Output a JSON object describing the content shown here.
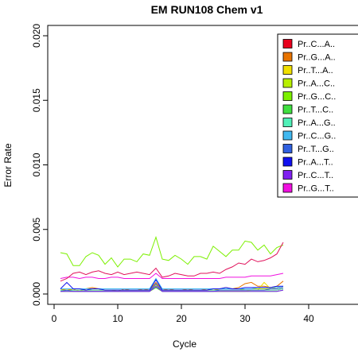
{
  "chart_data": {
    "type": "line",
    "title": "EM RUN108 Chem v1",
    "xlabel": "Cycle",
    "ylabel": "Error Rate",
    "xlim": [
      -1,
      49
    ],
    "ylim": [
      -0.0008,
      0.0208
    ],
    "xticks": [
      0,
      10,
      20,
      30,
      40
    ],
    "yticks": [
      0.0,
      0.005,
      0.01,
      0.015,
      0.02
    ],
    "ytick_labels": [
      "0.000",
      "0.005",
      "0.010",
      "0.015",
      "0.020"
    ],
    "xtick_labels": [
      "0",
      "10",
      "20",
      "30",
      "40"
    ],
    "legend_position": "top-right",
    "x": [
      1,
      2,
      3,
      4,
      5,
      6,
      7,
      8,
      9,
      10,
      11,
      12,
      13,
      14,
      15,
      16,
      17,
      18,
      19,
      20,
      21,
      22,
      23,
      24,
      25,
      26,
      27,
      28,
      29,
      30,
      31,
      32,
      33,
      34,
      35,
      36
    ],
    "series": [
      {
        "name": "Pr..C...A..",
        "color": "#e8001c",
        "values": [
          0.0003,
          0.0003,
          0.0003,
          0.0003,
          0.0003,
          0.0003,
          0.0003,
          0.0003,
          0.0003,
          0.0003,
          0.0003,
          0.0003,
          0.0003,
          0.0003,
          0.0003,
          0.0006,
          0.0003,
          0.0003,
          0.0003,
          0.0003,
          0.0003,
          0.0003,
          0.0003,
          0.0003,
          0.0003,
          0.0003,
          0.0003,
          0.0003,
          0.0003,
          0.0003,
          0.0003,
          0.0003,
          0.0003,
          0.0003,
          0.0003,
          0.0004
        ]
      },
      {
        "name": "Pr..G...A..",
        "color": "#e87400",
        "values": [
          0.0004,
          0.0003,
          0.0004,
          0.0002,
          0.0004,
          0.0005,
          0.0004,
          0.0003,
          0.0003,
          0.0002,
          0.0004,
          0.0003,
          0.0003,
          0.0004,
          0.0003,
          0.0009,
          0.0003,
          0.0004,
          0.0003,
          0.0003,
          0.0004,
          0.0003,
          0.0003,
          0.0004,
          0.0003,
          0.0004,
          0.0005,
          0.0004,
          0.0005,
          0.0008,
          0.0009,
          0.0006,
          0.0006,
          0.0005,
          0.0006,
          0.001
        ]
      },
      {
        "name": "Pr..T...A..",
        "color": "#f0e000",
        "values": [
          0.0002,
          0.0002,
          0.0002,
          0.0002,
          0.0002,
          0.0002,
          0.0002,
          0.0002,
          0.0002,
          0.0002,
          0.0002,
          0.0002,
          0.0002,
          0.0002,
          0.0002,
          0.0005,
          0.0002,
          0.0002,
          0.0002,
          0.0002,
          0.0002,
          0.0002,
          0.0002,
          0.0002,
          0.0002,
          0.0002,
          0.0002,
          0.0002,
          0.0002,
          0.0002,
          0.0003,
          0.0003,
          0.0009,
          0.0004,
          0.0005,
          0.0006
        ]
      },
      {
        "name": "Pr..A...C..",
        "color": "#b8f000",
        "values": [
          0.0003,
          0.0003,
          0.0003,
          0.0003,
          0.0003,
          0.0003,
          0.0003,
          0.0003,
          0.0003,
          0.0003,
          0.0003,
          0.0003,
          0.0003,
          0.0003,
          0.0003,
          0.0007,
          0.0003,
          0.0003,
          0.0003,
          0.0003,
          0.0003,
          0.0003,
          0.0003,
          0.0003,
          0.0003,
          0.0003,
          0.0003,
          0.0003,
          0.0003,
          0.0004,
          0.0004,
          0.0004,
          0.0004,
          0.0004,
          0.0004,
          0.0005
        ]
      },
      {
        "name": "Pr..G...C..",
        "color": "#7cf000",
        "values": [
          0.0032,
          0.0031,
          0.0022,
          0.0022,
          0.0029,
          0.0032,
          0.003,
          0.0023,
          0.0028,
          0.0021,
          0.0027,
          0.0027,
          0.0025,
          0.0031,
          0.003,
          0.0044,
          0.0027,
          0.0026,
          0.003,
          0.0027,
          0.0023,
          0.0029,
          0.0029,
          0.0027,
          0.0037,
          0.0033,
          0.0029,
          0.0034,
          0.0034,
          0.0041,
          0.004,
          0.0034,
          0.0038,
          0.0031,
          0.0036,
          0.0038
        ]
      },
      {
        "name": "Pr..T...C..",
        "color": "#40e040",
        "values": [
          0.0002,
          0.0002,
          0.0002,
          0.0002,
          0.0002,
          0.0002,
          0.0002,
          0.0002,
          0.0002,
          0.0002,
          0.0002,
          0.0002,
          0.0002,
          0.0002,
          0.0002,
          0.0005,
          0.0002,
          0.0002,
          0.0002,
          0.0002,
          0.0002,
          0.0002,
          0.0002,
          0.0002,
          0.0002,
          0.0002,
          0.0002,
          0.0002,
          0.0002,
          0.0002,
          0.0002,
          0.0002,
          0.0002,
          0.0002,
          0.0002,
          0.0003
        ]
      },
      {
        "name": "Pr..A...G..",
        "color": "#50f0b8",
        "values": [
          0.0003,
          0.0002,
          0.0003,
          0.0003,
          0.0003,
          0.0003,
          0.0003,
          0.0003,
          0.0003,
          0.0003,
          0.0003,
          0.0003,
          0.0003,
          0.0003,
          0.0003,
          0.0006,
          0.0003,
          0.0003,
          0.0003,
          0.0003,
          0.0003,
          0.0003,
          0.0003,
          0.0003,
          0.0003,
          0.0003,
          0.0003,
          0.0003,
          0.0003,
          0.0003,
          0.0003,
          0.0003,
          0.0003,
          0.0003,
          0.0003,
          0.0004
        ]
      },
      {
        "name": "Pr..C...G..",
        "color": "#40b8f0",
        "values": [
          0.0004,
          0.0004,
          0.0004,
          0.0004,
          0.0004,
          0.0004,
          0.0004,
          0.0004,
          0.0004,
          0.0004,
          0.0004,
          0.0004,
          0.0004,
          0.0004,
          0.0004,
          0.0012,
          0.0004,
          0.0004,
          0.0004,
          0.0004,
          0.0004,
          0.0004,
          0.0004,
          0.0004,
          0.0004,
          0.0004,
          0.0004,
          0.0004,
          0.0004,
          0.0004,
          0.0004,
          0.0005,
          0.0005,
          0.0005,
          0.0005,
          0.0006
        ]
      },
      {
        "name": "Pr..T...G..",
        "color": "#3060e0",
        "values": [
          0.0002,
          0.0003,
          0.0002,
          0.0002,
          0.0002,
          0.0002,
          0.0002,
          0.0002,
          0.0002,
          0.0002,
          0.0002,
          0.0002,
          0.0002,
          0.0002,
          0.0002,
          0.0008,
          0.0002,
          0.0002,
          0.0002,
          0.0002,
          0.0002,
          0.0002,
          0.0002,
          0.0002,
          0.0002,
          0.0003,
          0.0003,
          0.0003,
          0.0003,
          0.0003,
          0.0003,
          0.0003,
          0.0003,
          0.0004,
          0.0004,
          0.0005
        ]
      },
      {
        "name": "Pr..A...T..",
        "color": "#1010f0",
        "values": [
          0.0004,
          0.0009,
          0.0004,
          0.0004,
          0.0003,
          0.0004,
          0.0004,
          0.0003,
          0.0003,
          0.0003,
          0.0003,
          0.0003,
          0.0003,
          0.0003,
          0.0003,
          0.0011,
          0.0003,
          0.0003,
          0.0003,
          0.0003,
          0.0003,
          0.0003,
          0.0003,
          0.0003,
          0.0004,
          0.0004,
          0.0005,
          0.0004,
          0.0004,
          0.0005,
          0.0005,
          0.0005,
          0.0005,
          0.0005,
          0.0006,
          0.0006
        ]
      },
      {
        "name": "Pr..C...T..",
        "color": "#8020f0",
        "values": [
          0.0002,
          0.0002,
          0.0002,
          0.0002,
          0.0002,
          0.0002,
          0.0002,
          0.0002,
          0.0002,
          0.0002,
          0.0002,
          0.0002,
          0.0002,
          0.0002,
          0.0002,
          0.0006,
          0.0002,
          0.0002,
          0.0002,
          0.0002,
          0.0002,
          0.0002,
          0.0002,
          0.0002,
          0.0002,
          0.0002,
          0.0002,
          0.0002,
          0.0002,
          0.0002,
          0.0002,
          0.0002,
          0.0002,
          0.0002,
          0.0002,
          0.0003
        ]
      },
      {
        "name": "Pr..G...T..",
        "color": "#f010e0",
        "values": [
          0.0012,
          0.0013,
          0.0013,
          0.0012,
          0.0013,
          0.0013,
          0.0012,
          0.0012,
          0.0013,
          0.0013,
          0.0012,
          0.0012,
          0.0012,
          0.0012,
          0.0012,
          0.0016,
          0.0012,
          0.0012,
          0.0012,
          0.0012,
          0.0012,
          0.0012,
          0.0012,
          0.0012,
          0.0012,
          0.0012,
          0.0013,
          0.0013,
          0.0013,
          0.0013,
          0.0014,
          0.0014,
          0.0014,
          0.0014,
          0.0015,
          0.0016
        ]
      },
      {
        "name": "",
        "color": "#e0105a",
        "values": [
          0.001,
          0.0012,
          0.0016,
          0.0017,
          0.0015,
          0.0017,
          0.0018,
          0.0016,
          0.0015,
          0.0017,
          0.0015,
          0.0016,
          0.0017,
          0.0016,
          0.0015,
          0.002,
          0.0013,
          0.0014,
          0.0016,
          0.0015,
          0.0014,
          0.0014,
          0.0016,
          0.0016,
          0.0017,
          0.0016,
          0.0019,
          0.0021,
          0.0024,
          0.0023,
          0.0027,
          0.0025,
          0.0026,
          0.0028,
          0.0031,
          0.004
        ]
      }
    ]
  }
}
